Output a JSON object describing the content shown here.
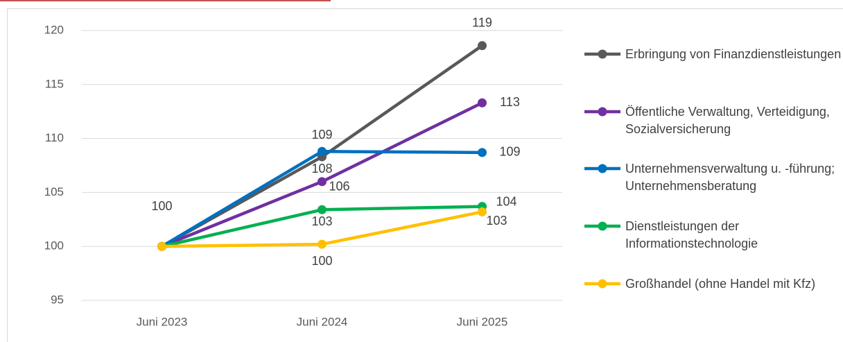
{
  "chart_data": {
    "type": "line",
    "categories": [
      "Juni 2023",
      "Juni 2024",
      "Juni 2025"
    ],
    "series": [
      {
        "name": "Erbringung von Finanzdienstleistungen",
        "color": "#595959",
        "values": [
          100,
          108.3,
          118.6
        ],
        "value_labels": [
          "100",
          "108",
          "119"
        ]
      },
      {
        "name": "Öffentliche Verwaltung, Verteidigung, Sozialversicherung",
        "color": "#7030a0",
        "values": [
          100,
          106,
          113.3
        ],
        "value_labels": [
          null,
          "106",
          "113"
        ]
      },
      {
        "name": "Unternehmensverwaltung u. -führung; Unternehmensberatung",
        "color": "#0070c0",
        "values": [
          100,
          108.8,
          108.7
        ],
        "value_labels": [
          null,
          "109",
          "109"
        ]
      },
      {
        "name": "Dienstleistungen der Informationstechnologie",
        "color": "#00b050",
        "values": [
          100,
          103.4,
          103.7
        ],
        "value_labels": [
          null,
          "103",
          "104"
        ]
      },
      {
        "name": "Großhandel (ohne Handel mit Kfz)",
        "color": "#ffc000",
        "values": [
          100,
          100.2,
          103.2
        ],
        "value_labels": [
          null,
          "100",
          "103"
        ]
      }
    ],
    "ylim": [
      95,
      120
    ],
    "yticks": [
      95,
      100,
      105,
      110,
      115,
      120
    ],
    "grid": true,
    "legend": "right"
  }
}
